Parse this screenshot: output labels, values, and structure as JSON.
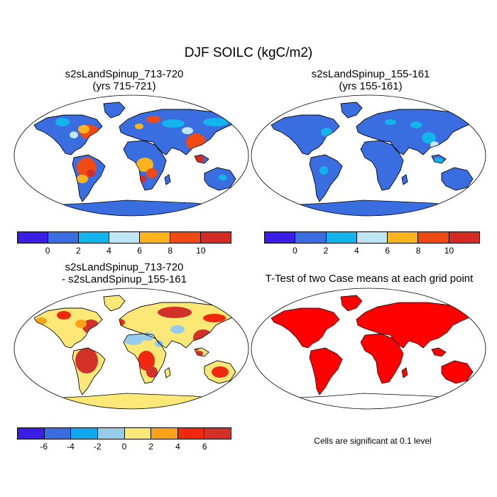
{
  "title": "DJF SOILC (kgC/m2)",
  "panels": [
    {
      "id": "p1",
      "title_line1": "s2sLandSpinup_713-720",
      "title_line2": "(yrs 715-721)",
      "map_type": "absolute",
      "colorbar": "abs"
    },
    {
      "id": "p2",
      "title_line1": "s2sLandSpinup_155-161",
      "title_line2": "(yrs 155-161)",
      "map_type": "absolute_low",
      "colorbar": "abs"
    },
    {
      "id": "p3",
      "title_line1": "s2sLandSpinup_713-720",
      "title_line2": "- s2sLandSpinup_155-161",
      "map_type": "difference",
      "colorbar": "diff"
    },
    {
      "id": "p4",
      "title_line1": "T-Test of two Case means at each grid point",
      "title_line2": "",
      "map_type": "significance",
      "colorbar": "none"
    }
  ],
  "note": "Cells are significant at 0.1 level",
  "colorbars": {
    "abs": {
      "colors": [
        "#3b1ee6",
        "#3a6ee0",
        "#12b4eb",
        "#bfe6f2",
        "#fbb41e",
        "#f04a14",
        "#d42b24"
      ],
      "tick_labels": [
        "0",
        "2",
        "4",
        "6",
        "8",
        "10"
      ]
    },
    "diff": {
      "colors": [
        "#3b1ee6",
        "#3a6ee0",
        "#12a8ee",
        "#96cbeb",
        "#fbe877",
        "#fba11a",
        "#f0280f",
        "#d3302a"
      ],
      "tick_labels": [
        "-6",
        "-4",
        "-2",
        "0",
        "2",
        "4",
        "6"
      ]
    }
  },
  "significance_color": "#ff0000",
  "map_colors": {
    "ocean": "#ffffff",
    "coast": "#000000",
    "antarctica_abs": "#3a6ee0",
    "antarctica_diff": "#fbe877",
    "antarctica_sig": "#ffffff"
  }
}
